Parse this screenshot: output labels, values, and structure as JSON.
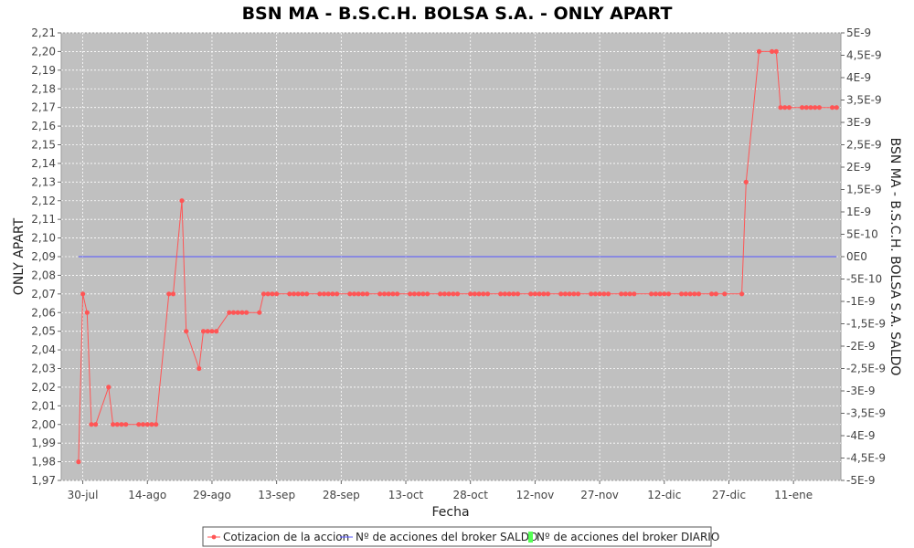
{
  "chart_data": {
    "type": "line",
    "title": "BSN MA - B.S.C.H. BOLSA S.A. - ONLY APART",
    "xlabel": "Fecha",
    "ylabel": "ONLY APART",
    "y2label": "BSN MA - B.S.C.H. BOLSA S.A. SALDO",
    "ylim": [
      1.97,
      2.21
    ],
    "y2lim": [
      -5e-09,
      5e-09
    ],
    "yticks": [
      "1,97",
      "1,98",
      "1,99",
      "2,00",
      "2,01",
      "2,02",
      "2,03",
      "2,04",
      "2,05",
      "2,06",
      "2,07",
      "2,08",
      "2,09",
      "2,10",
      "2,11",
      "2,12",
      "2,13",
      "2,14",
      "2,15",
      "2,16",
      "2,17",
      "2,18",
      "2,19",
      "2,20",
      "2,21"
    ],
    "y2ticks": [
      "-5E-9",
      "-4,5E-9",
      "-4E-9",
      "-3,5E-9",
      "-3E-9",
      "-2,5E-9",
      "-2E-9",
      "-1,5E-9",
      "-1E-9",
      "-5E-10",
      "0E0",
      "5E-10",
      "1E-9",
      "1,5E-9",
      "2E-9",
      "2,5E-9",
      "3E-9",
      "3,5E-9",
      "4E-9",
      "4,5E-9",
      "5E-9"
    ],
    "xticks": [
      "30-jul",
      "14-ago",
      "29-ago",
      "13-sep",
      "28-sep",
      "13-oct",
      "28-oct",
      "12-nov",
      "27-nov",
      "12-dic",
      "27-dic",
      "11-ene"
    ],
    "xlim": [
      "2013-07-25",
      "2014-01-22"
    ],
    "grid": true,
    "legend_placement": "bottom",
    "colors": {
      "plot_background": "#c0c0c0",
      "cotizacion": "#ff5555",
      "saldo": "#5555ff",
      "diario": "#55ff55"
    },
    "series": [
      {
        "name": "Cotizacion de la accion",
        "axis": "left",
        "points": [
          [
            "2013-07-29",
            1.98
          ],
          [
            "2013-07-30",
            2.07
          ],
          [
            "2013-07-31",
            2.06
          ],
          [
            "2013-08-01",
            2.0
          ],
          [
            "2013-08-02",
            2.0
          ],
          [
            "2013-08-05",
            2.02
          ],
          [
            "2013-08-06",
            2.0
          ],
          [
            "2013-08-07",
            2.0
          ],
          [
            "2013-08-08",
            2.0
          ],
          [
            "2013-08-09",
            2.0
          ],
          [
            "2013-08-12",
            2.0
          ],
          [
            "2013-08-13",
            2.0
          ],
          [
            "2013-08-14",
            2.0
          ],
          [
            "2013-08-15",
            2.0
          ],
          [
            "2013-08-16",
            2.0
          ],
          [
            "2013-08-19",
            2.07
          ],
          [
            "2013-08-20",
            2.07
          ],
          [
            "2013-08-22",
            2.12
          ],
          [
            "2013-08-23",
            2.05
          ],
          [
            "2013-08-26",
            2.03
          ],
          [
            "2013-08-27",
            2.05
          ],
          [
            "2013-08-28",
            2.05
          ],
          [
            "2013-08-29",
            2.05
          ],
          [
            "2013-08-30",
            2.05
          ],
          [
            "2013-09-02",
            2.06
          ],
          [
            "2013-09-03",
            2.06
          ],
          [
            "2013-09-04",
            2.06
          ],
          [
            "2013-09-05",
            2.06
          ],
          [
            "2013-09-06",
            2.06
          ],
          [
            "2013-09-09",
            2.06
          ],
          [
            "2013-09-10",
            2.07
          ],
          [
            "2013-09-11",
            2.07
          ],
          [
            "2013-09-12",
            2.07
          ],
          [
            "2013-09-13",
            2.07
          ],
          [
            "2013-09-16",
            2.07
          ],
          [
            "2013-09-17",
            2.07
          ],
          [
            "2013-09-18",
            2.07
          ],
          [
            "2013-09-19",
            2.07
          ],
          [
            "2013-09-20",
            2.07
          ],
          [
            "2013-09-23",
            2.07
          ],
          [
            "2013-09-24",
            2.07
          ],
          [
            "2013-09-25",
            2.07
          ],
          [
            "2013-09-26",
            2.07
          ],
          [
            "2013-09-27",
            2.07
          ],
          [
            "2013-09-30",
            2.07
          ],
          [
            "2013-10-01",
            2.07
          ],
          [
            "2013-10-02",
            2.07
          ],
          [
            "2013-10-03",
            2.07
          ],
          [
            "2013-10-04",
            2.07
          ],
          [
            "2013-10-07",
            2.07
          ],
          [
            "2013-10-08",
            2.07
          ],
          [
            "2013-10-09",
            2.07
          ],
          [
            "2013-10-10",
            2.07
          ],
          [
            "2013-10-11",
            2.07
          ],
          [
            "2013-10-14",
            2.07
          ],
          [
            "2013-10-15",
            2.07
          ],
          [
            "2013-10-16",
            2.07
          ],
          [
            "2013-10-17",
            2.07
          ],
          [
            "2013-10-18",
            2.07
          ],
          [
            "2013-10-21",
            2.07
          ],
          [
            "2013-10-22",
            2.07
          ],
          [
            "2013-10-23",
            2.07
          ],
          [
            "2013-10-24",
            2.07
          ],
          [
            "2013-10-25",
            2.07
          ],
          [
            "2013-10-28",
            2.07
          ],
          [
            "2013-10-29",
            2.07
          ],
          [
            "2013-10-30",
            2.07
          ],
          [
            "2013-10-31",
            2.07
          ],
          [
            "2013-11-01",
            2.07
          ],
          [
            "2013-11-04",
            2.07
          ],
          [
            "2013-11-05",
            2.07
          ],
          [
            "2013-11-06",
            2.07
          ],
          [
            "2013-11-07",
            2.07
          ],
          [
            "2013-11-08",
            2.07
          ],
          [
            "2013-11-11",
            2.07
          ],
          [
            "2013-11-12",
            2.07
          ],
          [
            "2013-11-13",
            2.07
          ],
          [
            "2013-11-14",
            2.07
          ],
          [
            "2013-11-15",
            2.07
          ],
          [
            "2013-11-18",
            2.07
          ],
          [
            "2013-11-19",
            2.07
          ],
          [
            "2013-11-20",
            2.07
          ],
          [
            "2013-11-21",
            2.07
          ],
          [
            "2013-11-22",
            2.07
          ],
          [
            "2013-11-25",
            2.07
          ],
          [
            "2013-11-26",
            2.07
          ],
          [
            "2013-11-27",
            2.07
          ],
          [
            "2013-11-28",
            2.07
          ],
          [
            "2013-11-29",
            2.07
          ],
          [
            "2013-12-02",
            2.07
          ],
          [
            "2013-12-03",
            2.07
          ],
          [
            "2013-12-04",
            2.07
          ],
          [
            "2013-12-05",
            2.07
          ],
          [
            "2013-12-09",
            2.07
          ],
          [
            "2013-12-10",
            2.07
          ],
          [
            "2013-12-11",
            2.07
          ],
          [
            "2013-12-12",
            2.07
          ],
          [
            "2013-12-13",
            2.07
          ],
          [
            "2013-12-16",
            2.07
          ],
          [
            "2013-12-17",
            2.07
          ],
          [
            "2013-12-18",
            2.07
          ],
          [
            "2013-12-19",
            2.07
          ],
          [
            "2013-12-20",
            2.07
          ],
          [
            "2013-12-23",
            2.07
          ],
          [
            "2013-12-24",
            2.07
          ],
          [
            "2013-12-26",
            2.07
          ],
          [
            "2013-12-30",
            2.07
          ],
          [
            "2013-12-31",
            2.13
          ],
          [
            "2014-01-03",
            2.2
          ],
          [
            "2014-01-06",
            2.2
          ],
          [
            "2014-01-07",
            2.2
          ],
          [
            "2014-01-08",
            2.17
          ],
          [
            "2014-01-09",
            2.17
          ],
          [
            "2014-01-10",
            2.17
          ],
          [
            "2014-01-13",
            2.17
          ],
          [
            "2014-01-14",
            2.17
          ],
          [
            "2014-01-15",
            2.17
          ],
          [
            "2014-01-16",
            2.17
          ],
          [
            "2014-01-17",
            2.17
          ],
          [
            "2014-01-20",
            2.17
          ],
          [
            "2014-01-21",
            2.17
          ]
        ]
      },
      {
        "name": "Nº de acciones del broker SALDO",
        "axis": "right",
        "points": [
          [
            "2013-07-29",
            0
          ],
          [
            "2014-01-21",
            0
          ]
        ]
      },
      {
        "name": "Nº de acciones del broker DIARIO",
        "axis": "right",
        "points": []
      }
    ]
  }
}
